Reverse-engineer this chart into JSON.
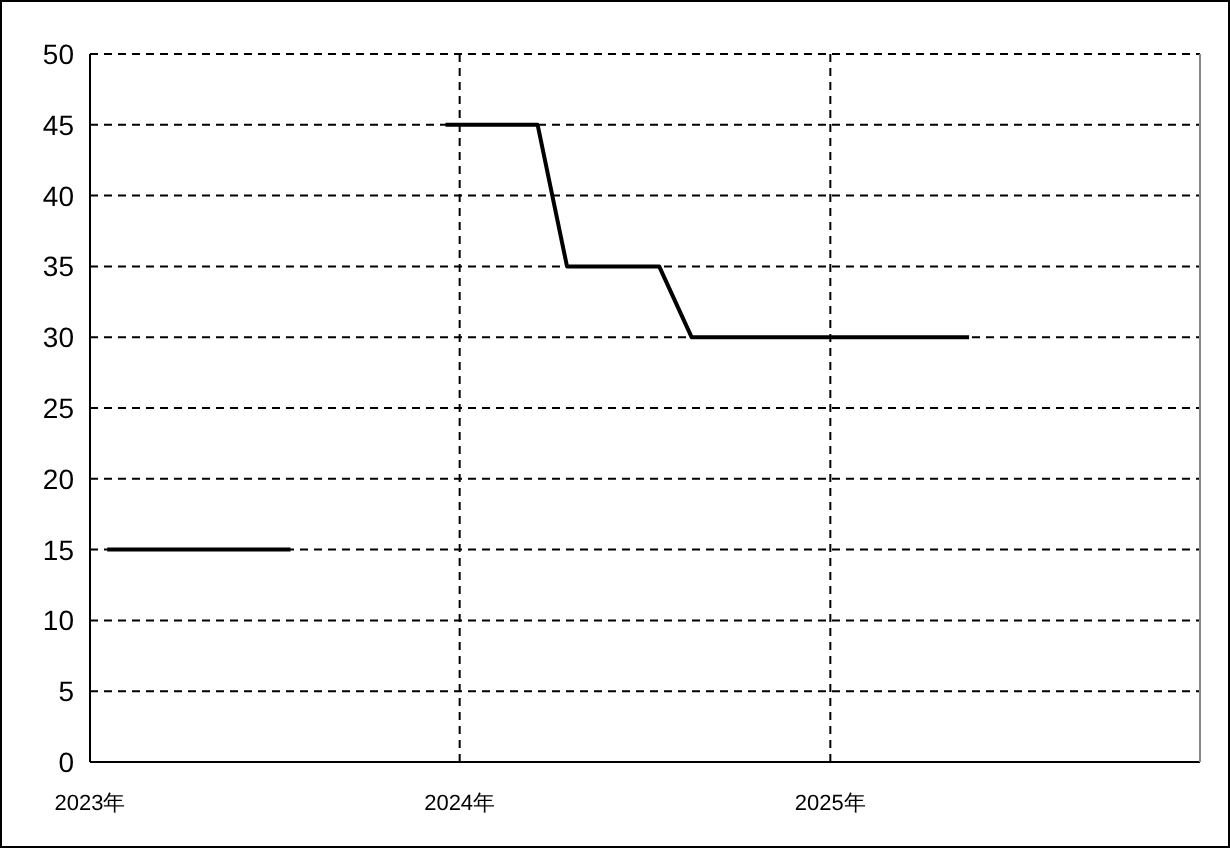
{
  "chart_data": {
    "type": "line",
    "series": [
      {
        "color": "#000000",
        "x": [
          "2023-01-18",
          "2023-07-18"
        ],
        "values": [
          15,
          15
        ]
      },
      {
        "color": "#000000",
        "x": [
          "2023-12-18",
          "2024-03-18",
          "2024-04-16",
          "2024-07-16",
          "2024-08-17",
          "2025-05-18"
        ],
        "values": [
          45,
          45,
          35,
          35,
          30,
          30
        ]
      }
    ],
    "xlim": [
      "2023-01-01",
      "2026-01-01"
    ],
    "xticks": [
      {
        "value": "2023-01-01",
        "label": "2023年"
      },
      {
        "value": "2024-01-01",
        "label": "2024年"
      },
      {
        "value": "2025-01-01",
        "label": "2025年"
      }
    ],
    "ylim": [
      0,
      50
    ],
    "yticks": [
      0,
      5,
      10,
      15,
      20,
      25,
      30,
      35,
      40,
      45,
      50
    ],
    "grid": true,
    "line_style": "solid",
    "marker": "none"
  }
}
